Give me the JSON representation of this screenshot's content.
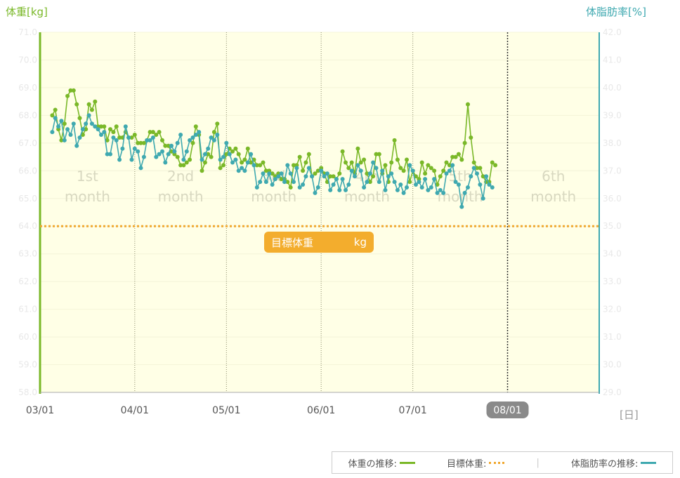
{
  "labels": {
    "left_axis_title": "体重[kg]",
    "right_axis_title": "体脂肪率[%]",
    "x_unit": "[日]",
    "target_badge_label": "目標体重",
    "target_badge_unit": "kg"
  },
  "legend": {
    "weight_label": "体重の推移:",
    "target_label": "目標体重:",
    "separator": "|",
    "fat_label": "体脂肪率の推移:"
  },
  "colors": {
    "weight": "#7ab828",
    "fat": "#3fa9b0",
    "target": "#f0a830",
    "plot_bg": "#ffffe6",
    "badge": "#f3ad2d"
  },
  "chart_data": {
    "type": "line",
    "x_tick_labels": [
      "03/01",
      "04/01",
      "05/01",
      "06/01",
      "07/01",
      "08/01"
    ],
    "x_tick_days": [
      0,
      31,
      61,
      92,
      122,
      153
    ],
    "x_range_days": [
      0,
      183
    ],
    "current_date_label": "08/01",
    "month_labels": [
      {
        "line1": "1st",
        "line2": "month"
      },
      {
        "line1": "2nd",
        "line2": "month"
      },
      {
        "line1": "3rd",
        "line2": "month"
      },
      {
        "line1": "4th",
        "line2": "month"
      },
      {
        "line1": "5th",
        "line2": "month"
      },
      {
        "line1": "6th",
        "line2": "month"
      }
    ],
    "left_axis": {
      "min": 58.0,
      "max": 71.0,
      "ticks": [
        "71.0",
        "70.0",
        "69.0",
        "68.0",
        "67.0",
        "66.0",
        "65.0",
        "64.0",
        "63.0",
        "62.0",
        "61.0",
        "60.0",
        "59.0",
        "58.0"
      ]
    },
    "right_axis": {
      "min": 29.0,
      "max": 42.0,
      "ticks": [
        "42.0",
        "41.0",
        "40.0",
        "39.0",
        "38.0",
        "37.0",
        "36.0",
        "35.0",
        "34.0",
        "33.0",
        "32.0",
        "31.0",
        "30.0",
        "29.0"
      ]
    },
    "target_weight": 64.0,
    "series": [
      {
        "axis": "left",
        "values": [
          68.0,
          68.2,
          67.5,
          67.1,
          67.7,
          68.7,
          68.9,
          68.9,
          68.4,
          67.9,
          67.3,
          67.5,
          68.4,
          68.2,
          68.5,
          67.6,
          67.6,
          67.6,
          67.1,
          67.5,
          67.4,
          67.6,
          67.2,
          67.2,
          67.4,
          67.2,
          67.2,
          67.3,
          67.0,
          67.0,
          67.0,
          67.1,
          67.4,
          67.4,
          67.3,
          67.4,
          67.1,
          66.9,
          66.9,
          66.7,
          66.6,
          66.5,
          66.2,
          66.2,
          66.3,
          66.4,
          67.0,
          67.6,
          67.3,
          66.0,
          66.3,
          66.6,
          66.5,
          67.4,
          67.7,
          66.1,
          66.2,
          66.6,
          66.8,
          66.7,
          66.8,
          66.6,
          66.3,
          66.4,
          66.8,
          66.3,
          66.4,
          66.2,
          66.2,
          66.3,
          66.0,
          66.0,
          65.9,
          65.8,
          65.9,
          65.7,
          65.7,
          65.6,
          65.4,
          66.2,
          66.2,
          66.5,
          66.0,
          66.3,
          66.6,
          65.8,
          65.9,
          66.0,
          66.1,
          65.9,
          65.6,
          65.8,
          65.8,
          65.7,
          65.9,
          66.7,
          66.3,
          66.1,
          66.3,
          65.9,
          66.8,
          66.3,
          66.4,
          65.9,
          65.6,
          65.8,
          66.6,
          66.6,
          65.9,
          66.2,
          65.6,
          66.3,
          67.1,
          66.4,
          66.1,
          66.0,
          66.4,
          65.6,
          66.0,
          65.8,
          65.7,
          66.3,
          65.9,
          66.2,
          66.1,
          66.0,
          65.5,
          65.8,
          66.0,
          66.3,
          66.2,
          66.5,
          66.5,
          66.6,
          66.4,
          67.0,
          68.4,
          67.2,
          66.3,
          66.1,
          66.1,
          65.8,
          65.6,
          65.6,
          66.3,
          66.2
        ]
      },
      {
        "axis": "right",
        "values": [
          38.4,
          38.9,
          38.6,
          38.8,
          38.1,
          38.5,
          38.3,
          38.7,
          37.9,
          38.2,
          38.5,
          38.7,
          39.0,
          38.7,
          38.6,
          38.5,
          38.3,
          38.4,
          37.6,
          37.6,
          38.2,
          38.1,
          37.4,
          37.8,
          38.6,
          38.2,
          37.4,
          37.8,
          37.7,
          37.1,
          37.5,
          38.1,
          38.1,
          38.2,
          37.5,
          37.6,
          37.7,
          37.3,
          37.6,
          37.9,
          37.7,
          38.0,
          38.3,
          37.4,
          37.7,
          38.1,
          38.2,
          38.3,
          38.4,
          37.4,
          37.6,
          37.8,
          38.2,
          38.1,
          38.3,
          37.4,
          37.5,
          38.0,
          37.6,
          37.3,
          37.4,
          37.0,
          37.1,
          37.0,
          37.3,
          37.6,
          37.2,
          36.4,
          36.6,
          36.9,
          36.6,
          36.9,
          36.5,
          36.7,
          36.8,
          36.9,
          36.6,
          37.2,
          36.9,
          36.6,
          37.1,
          36.4,
          36.5,
          36.8,
          37.1,
          36.8,
          36.2,
          36.4,
          37.0,
          36.8,
          36.9,
          36.3,
          36.5,
          36.7,
          36.3,
          36.7,
          36.3,
          36.5,
          37.0,
          36.8,
          37.2,
          37.0,
          36.4,
          36.6,
          36.9,
          37.3,
          37.1,
          36.6,
          37.0,
          36.3,
          36.8,
          36.9,
          36.6,
          36.3,
          36.5,
          36.2,
          36.4,
          37.2,
          37.0,
          36.5,
          36.6,
          36.4,
          36.7,
          36.3,
          36.4,
          36.7,
          36.2,
          36.3,
          36.2,
          36.9,
          37.0,
          37.2,
          36.6,
          36.5,
          35.7,
          36.2,
          36.4,
          36.8,
          37.1,
          36.9,
          36.5,
          36.0,
          36.8,
          36.5,
          36.4
        ]
      }
    ]
  }
}
